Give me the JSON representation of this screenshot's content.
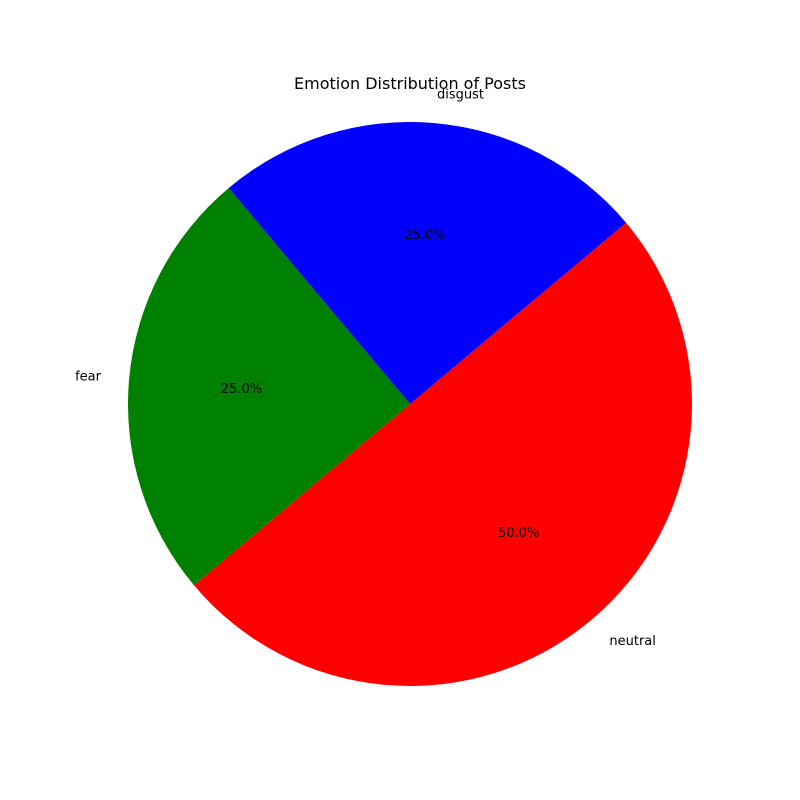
{
  "chart_data": {
    "type": "pie",
    "title": "Emotion Distribution of Posts",
    "categories": [
      "neutral",
      "fear",
      "disgust"
    ],
    "values": [
      50.0,
      25.0,
      25.0
    ],
    "percent_labels": [
      "50.0%",
      "25.0%",
      "25.0%"
    ],
    "colors": [
      "#ff0000",
      "#008000",
      "#0000ff"
    ],
    "start_angle_deg": -40,
    "direction": "clockwise"
  }
}
